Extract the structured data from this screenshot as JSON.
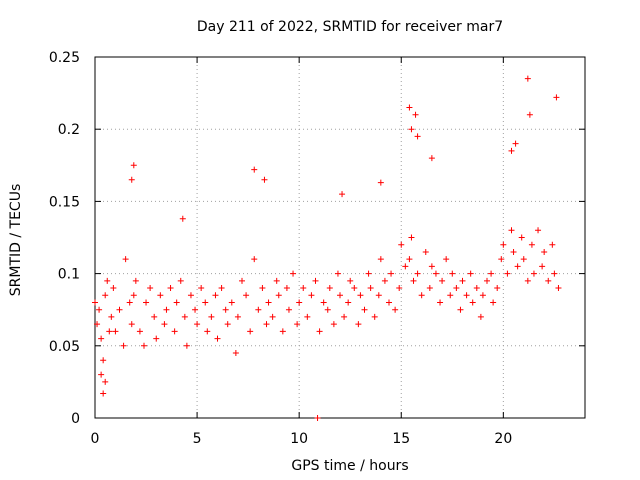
{
  "colors": {
    "series": "#ff0000",
    "grid": "#a0a0a0",
    "axis": "#000000",
    "background": "#ffffff"
  },
  "chart_data": {
    "type": "scatter",
    "title": "Day 211 of 2022, SRMTID for receiver mar7",
    "xlabel": "GPS time / hours",
    "ylabel": "SRMTID / TECUs",
    "xlim": [
      0,
      24
    ],
    "ylim": [
      0,
      0.25
    ],
    "xticks": [
      0,
      5,
      10,
      15,
      20
    ],
    "xtick_labels": [
      "0",
      "5",
      "10",
      "15",
      "20"
    ],
    "yticks": [
      0,
      0.05,
      0.1,
      0.15,
      0.2,
      0.25
    ],
    "ytick_labels": [
      "0",
      "0.05",
      "0.1",
      "0.15",
      "0.2",
      "0.25"
    ],
    "grid": true,
    "marker": "plus",
    "series": [
      {
        "name": "SRMTID",
        "x": [
          0.0,
          0.1,
          0.2,
          0.3,
          0.4,
          0.5,
          0.6,
          0.7,
          0.8,
          0.9,
          1.0,
          1.2,
          1.4,
          1.5,
          1.7,
          1.8,
          1.9,
          2.0,
          2.2,
          2.4,
          2.5,
          2.7,
          2.9,
          3.0,
          3.2,
          3.4,
          3.5,
          3.7,
          3.9,
          4.0,
          4.2,
          4.4,
          4.5,
          4.7,
          4.9,
          5.0,
          5.2,
          5.4,
          5.5,
          5.7,
          5.9,
          6.0,
          6.2,
          6.4,
          6.5,
          6.7,
          6.9,
          7.0,
          7.2,
          7.4,
          7.6,
          7.8,
          8.0,
          8.2,
          8.4,
          8.5,
          8.7,
          8.9,
          9.0,
          9.2,
          9.4,
          9.5,
          9.7,
          9.9,
          10.0,
          10.2,
          10.4,
          10.6,
          10.8,
          11.0,
          11.2,
          11.4,
          11.5,
          11.7,
          11.9,
          12.0,
          12.2,
          12.4,
          12.5,
          12.7,
          12.9,
          13.0,
          13.2,
          13.4,
          13.5,
          13.7,
          13.9,
          14.0,
          14.2,
          14.4,
          14.5,
          14.7,
          14.9,
          15.0,
          15.2,
          15.4,
          15.5,
          15.6,
          15.8,
          16.0,
          16.2,
          16.4,
          16.5,
          16.7,
          16.9,
          17.0,
          17.2,
          17.4,
          17.5,
          17.7,
          17.9,
          18.0,
          18.2,
          18.4,
          18.5,
          18.7,
          18.9,
          19.0,
          19.2,
          19.4,
          19.5,
          19.7,
          19.9,
          20.0,
          20.2,
          20.4,
          20.5,
          20.7,
          20.9,
          21.0,
          21.2,
          21.4,
          21.5,
          21.7,
          21.9,
          22.0,
          22.2,
          22.4,
          22.5,
          22.7
        ],
        "y": [
          0.08,
          0.065,
          0.075,
          0.055,
          0.04,
          0.085,
          0.095,
          0.06,
          0.07,
          0.09,
          0.06,
          0.075,
          0.05,
          0.11,
          0.08,
          0.065,
          0.085,
          0.095,
          0.06,
          0.05,
          0.08,
          0.09,
          0.07,
          0.055,
          0.085,
          0.065,
          0.075,
          0.09,
          0.06,
          0.08,
          0.095,
          0.07,
          0.05,
          0.085,
          0.075,
          0.065,
          0.09,
          0.08,
          0.06,
          0.07,
          0.085,
          0.055,
          0.09,
          0.075,
          0.065,
          0.08,
          0.045,
          0.07,
          0.095,
          0.085,
          0.06,
          0.11,
          0.075,
          0.09,
          0.065,
          0.08,
          0.07,
          0.095,
          0.085,
          0.06,
          0.09,
          0.075,
          0.1,
          0.065,
          0.08,
          0.09,
          0.07,
          0.085,
          0.095,
          0.06,
          0.08,
          0.075,
          0.09,
          0.065,
          0.1,
          0.085,
          0.07,
          0.08,
          0.095,
          0.09,
          0.065,
          0.085,
          0.075,
          0.1,
          0.09,
          0.07,
          0.085,
          0.11,
          0.095,
          0.08,
          0.1,
          0.075,
          0.09,
          0.12,
          0.105,
          0.11,
          0.125,
          0.095,
          0.1,
          0.085,
          0.115,
          0.09,
          0.105,
          0.1,
          0.08,
          0.095,
          0.11,
          0.085,
          0.1,
          0.09,
          0.075,
          0.095,
          0.085,
          0.1,
          0.08,
          0.09,
          0.07,
          0.085,
          0.095,
          0.1,
          0.08,
          0.09,
          0.11,
          0.12,
          0.1,
          0.13,
          0.115,
          0.105,
          0.125,
          0.11,
          0.095,
          0.12,
          0.1,
          0.13,
          0.105,
          0.115,
          0.095,
          0.12,
          0.1,
          0.09
        ]
      }
    ],
    "extra_points": {
      "x": [
        0.4,
        0.5,
        0.3,
        1.9,
        1.8,
        7.8,
        8.3,
        4.3,
        15.4,
        15.5,
        15.7,
        15.8,
        16.5,
        21.2,
        21.3,
        22.6,
        20.6,
        20.4,
        14.0,
        12.1,
        10.9
      ],
      "y": [
        0.017,
        0.025,
        0.03,
        0.175,
        0.165,
        0.172,
        0.165,
        0.138,
        0.215,
        0.2,
        0.21,
        0.195,
        0.18,
        0.235,
        0.21,
        0.222,
        0.19,
        0.185,
        0.163,
        0.155,
        0.0
      ]
    }
  }
}
